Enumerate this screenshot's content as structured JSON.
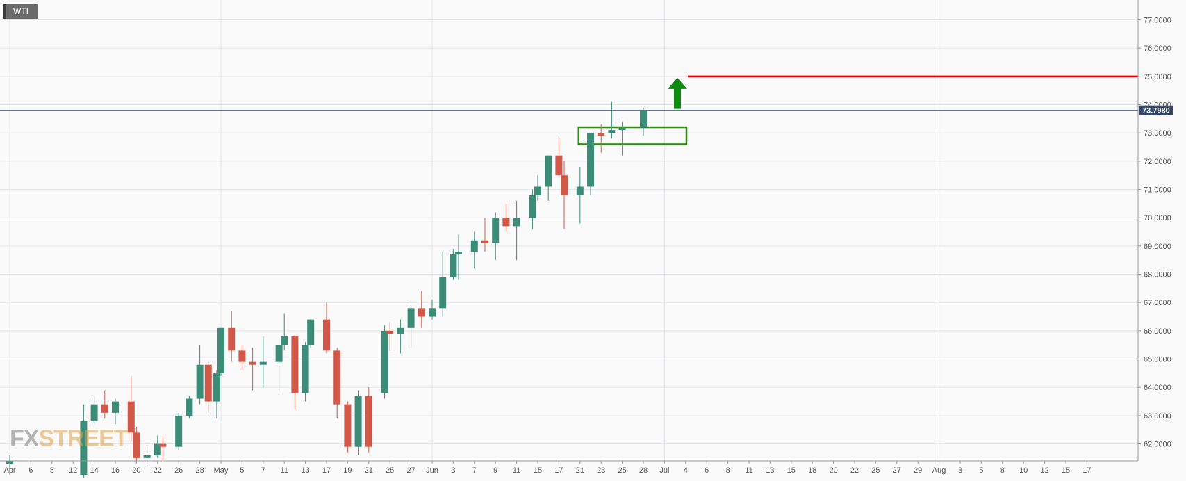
{
  "symbol": "WTI",
  "logo": {
    "part1": "FX",
    "part2": "STREET"
  },
  "colors": {
    "up": "#3d8c78",
    "down": "#d2584a",
    "grid": "#e6e6ea",
    "price_line": "#33466b",
    "resistance": "#e00000",
    "arrow": "#118a11",
    "box": "#2e8c12",
    "badge_bg": "#33466b"
  },
  "current_price_label": "73.7980",
  "chart_data": {
    "type": "candlestick",
    "title": "WTI",
    "x_tick_labels": [
      "Apr",
      "6",
      "8",
      "12",
      "14",
      "16",
      "20",
      "22",
      "26",
      "28",
      "May",
      "5",
      "7",
      "11",
      "13",
      "17",
      "19",
      "21",
      "25",
      "27",
      "Jun",
      "3",
      "7",
      "9",
      "11",
      "15",
      "17",
      "21",
      "23",
      "25",
      "28",
      "Jul",
      "4",
      "6",
      "8",
      "11",
      "13",
      "15",
      "18",
      "20",
      "22",
      "25",
      "27",
      "29",
      "Aug",
      "3",
      "5",
      "8",
      "10",
      "12",
      "15",
      "17"
    ],
    "y_tick_labels": [
      "62.0000",
      "63.0000",
      "64.0000",
      "65.0000",
      "66.0000",
      "67.0000",
      "68.0000",
      "69.0000",
      "70.0000",
      "71.0000",
      "72.0000",
      "73.0000",
      "74.0000",
      "75.0000",
      "76.0000",
      "77.0000"
    ],
    "ylim": [
      61.4,
      77.7
    ],
    "current_price": 73.798,
    "resistance_level": 75.0,
    "candles": [
      {
        "date": "Apr 1",
        "open": 61.3,
        "high": 61.6,
        "low": 61.0,
        "close": 61.4
      },
      {
        "date": "Apr 13",
        "open": 60.9,
        "high": 63.4,
        "low": 60.8,
        "close": 62.8
      },
      {
        "date": "Apr 14",
        "open": 62.8,
        "high": 63.7,
        "low": 62.7,
        "close": 63.4
      },
      {
        "date": "Apr 15",
        "open": 63.4,
        "high": 63.9,
        "low": 62.9,
        "close": 63.1
      },
      {
        "date": "Apr 16",
        "open": 63.1,
        "high": 63.6,
        "low": 62.7,
        "close": 63.5
      },
      {
        "date": "Apr 19",
        "open": 63.5,
        "high": 64.4,
        "low": 62.1,
        "close": 62.4
      },
      {
        "date": "Apr 20",
        "open": 62.4,
        "high": 62.6,
        "low": 61.3,
        "close": 61.5
      },
      {
        "date": "Apr 21",
        "open": 61.5,
        "high": 61.9,
        "low": 61.2,
        "close": 61.6
      },
      {
        "date": "Apr 22",
        "open": 61.6,
        "high": 62.3,
        "low": 61.5,
        "close": 62.0
      },
      {
        "date": "Apr 23",
        "open": 62.0,
        "high": 62.3,
        "low": 61.4,
        "close": 61.9
      },
      {
        "date": "Apr 26",
        "open": 61.9,
        "high": 63.1,
        "low": 61.8,
        "close": 63.0
      },
      {
        "date": "Apr 27",
        "open": 63.0,
        "high": 63.7,
        "low": 62.9,
        "close": 63.6
      },
      {
        "date": "Apr 28",
        "open": 63.6,
        "high": 65.5,
        "low": 63.4,
        "close": 64.8
      },
      {
        "date": "Apr 29",
        "open": 64.8,
        "high": 64.9,
        "low": 63.1,
        "close": 63.5
      },
      {
        "date": "Apr 30",
        "open": 63.5,
        "high": 64.6,
        "low": 62.9,
        "close": 64.5
      },
      {
        "date": "May 3",
        "open": 64.5,
        "high": 66.1,
        "low": 64.4,
        "close": 66.1
      },
      {
        "date": "May 4",
        "open": 66.1,
        "high": 66.7,
        "low": 64.9,
        "close": 65.3
      },
      {
        "date": "May 5",
        "open": 65.3,
        "high": 65.5,
        "low": 64.6,
        "close": 64.9
      },
      {
        "date": "May 6",
        "open": 64.9,
        "high": 65.4,
        "low": 63.9,
        "close": 64.8
      },
      {
        "date": "May 7",
        "open": 64.8,
        "high": 65.8,
        "low": 64.0,
        "close": 64.9
      },
      {
        "date": "May 10",
        "open": 64.9,
        "high": 65.5,
        "low": 63.8,
        "close": 65.5
      },
      {
        "date": "May 11",
        "open": 65.5,
        "high": 66.6,
        "low": 65.3,
        "close": 65.8
      },
      {
        "date": "May 12",
        "open": 65.8,
        "high": 65.9,
        "low": 63.2,
        "close": 63.8
      },
      {
        "date": "May 13",
        "open": 63.8,
        "high": 65.6,
        "low": 63.5,
        "close": 65.5
      },
      {
        "date": "May 14",
        "open": 65.5,
        "high": 66.4,
        "low": 65.4,
        "close": 66.4
      },
      {
        "date": "May 17",
        "open": 66.4,
        "high": 67.0,
        "low": 65.2,
        "close": 65.3
      },
      {
        "date": "May 18",
        "open": 65.3,
        "high": 65.4,
        "low": 62.9,
        "close": 63.4
      },
      {
        "date": "May 19",
        "open": 63.4,
        "high": 63.5,
        "low": 61.7,
        "close": 61.9
      },
      {
        "date": "May 20",
        "open": 61.9,
        "high": 63.9,
        "low": 61.6,
        "close": 63.7
      },
      {
        "date": "May 21",
        "open": 63.7,
        "high": 64.0,
        "low": 61.7,
        "close": 61.9
      },
      {
        "date": "May 24",
        "open": 63.8,
        "high": 66.2,
        "low": 63.6,
        "close": 66.0
      },
      {
        "date": "May 25",
        "open": 66.0,
        "high": 66.3,
        "low": 65.3,
        "close": 65.9
      },
      {
        "date": "May 26",
        "open": 65.9,
        "high": 66.4,
        "low": 65.2,
        "close": 66.1
      },
      {
        "date": "May 27",
        "open": 66.1,
        "high": 66.9,
        "low": 65.4,
        "close": 66.8
      },
      {
        "date": "May 28",
        "open": 66.8,
        "high": 67.4,
        "low": 66.1,
        "close": 66.5
      },
      {
        "date": "Jun 1",
        "open": 66.5,
        "high": 67.1,
        "low": 66.4,
        "close": 66.8
      },
      {
        "date": "Jun 2",
        "open": 66.8,
        "high": 68.8,
        "low": 66.5,
        "close": 67.9
      },
      {
        "date": "Jun 3",
        "open": 67.9,
        "high": 68.9,
        "low": 67.8,
        "close": 68.7
      },
      {
        "date": "Jun 4",
        "open": 68.7,
        "high": 69.4,
        "low": 67.8,
        "close": 68.8
      },
      {
        "date": "Jun 7",
        "open": 68.8,
        "high": 69.5,
        "low": 68.2,
        "close": 69.2
      },
      {
        "date": "Jun 8",
        "open": 69.2,
        "high": 70.0,
        "low": 68.8,
        "close": 69.1
      },
      {
        "date": "Jun 9",
        "open": 69.1,
        "high": 70.2,
        "low": 68.5,
        "close": 70.0
      },
      {
        "date": "Jun 10",
        "open": 70.0,
        "high": 70.5,
        "low": 69.5,
        "close": 69.7
      },
      {
        "date": "Jun 11",
        "open": 69.7,
        "high": 70.6,
        "low": 68.5,
        "close": 70.0
      },
      {
        "date": "Jun 14",
        "open": 70.0,
        "high": 71.0,
        "low": 69.6,
        "close": 70.8
      },
      {
        "date": "Jun 15",
        "open": 70.8,
        "high": 71.5,
        "low": 70.6,
        "close": 71.1
      },
      {
        "date": "Jun 16",
        "open": 71.1,
        "high": 72.2,
        "low": 70.6,
        "close": 72.2
      },
      {
        "date": "Jun 17",
        "open": 72.2,
        "high": 72.8,
        "low": 71.5,
        "close": 71.5
      },
      {
        "date": "Jun 18",
        "open": 71.5,
        "high": 72.0,
        "low": 69.6,
        "close": 70.8
      },
      {
        "date": "Jun 21",
        "open": 70.8,
        "high": 71.8,
        "low": 69.8,
        "close": 71.1
      },
      {
        "date": "Jun 22",
        "open": 71.1,
        "high": 73.0,
        "low": 70.8,
        "close": 73.0
      },
      {
        "date": "Jun 23",
        "open": 73.0,
        "high": 73.3,
        "low": 72.3,
        "close": 72.9
      },
      {
        "date": "Jun 24",
        "open": 73.0,
        "high": 74.1,
        "low": 72.8,
        "close": 73.1
      },
      {
        "date": "Jun 25",
        "open": 73.1,
        "high": 73.4,
        "low": 72.2,
        "close": 73.2
      },
      {
        "date": "Jun 28",
        "open": 73.2,
        "high": 73.9,
        "low": 72.9,
        "close": 73.8
      }
    ]
  }
}
